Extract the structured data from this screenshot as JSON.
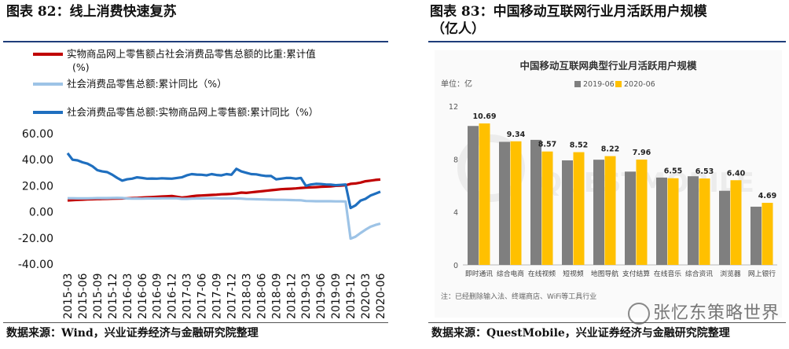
{
  "left": {
    "title": "图表 82：线上消费快速复苏",
    "source": "数据来源：Wind，兴业证券经济与金融研究院整理"
  },
  "right": {
    "title_line1": "图表 83：中国移动互联网行业月活跃用户规模",
    "title_line2": "（亿人）",
    "source": "数据来源：QuestMobile，兴业证券经济与金融研究院整理",
    "watermark": "张忆东策略世界",
    "watermark_icon": "wechat-icon"
  },
  "chart_data": [
    {
      "type": "line",
      "title": "",
      "xlabel": "",
      "ylabel": "",
      "ylim": [
        -40,
        60
      ],
      "yticks": [
        "60.00",
        "40.00",
        "20.00",
        "0.00",
        "-20.00",
        "-40.00"
      ],
      "ytick_values": [
        60,
        40,
        20,
        0,
        -20,
        -40
      ],
      "x_tick_labels": [
        "2015-03",
        "2015-06",
        "2015-09",
        "2015-12",
        "2016-03",
        "2016-06",
        "2016-09",
        "2016-12",
        "2017-03",
        "2017-06",
        "2017-09",
        "2017-12",
        "2018-03",
        "2018-06",
        "2018-09",
        "2018-12",
        "2019-03",
        "2019-06",
        "2019-09",
        "2019-12",
        "2020-03",
        "2020-06"
      ],
      "x_start_month": "2015-03",
      "n_months": 64,
      "legend_position": "top-left",
      "series": [
        {
          "name_line1": "实物商品网上零售额占社会消费品零售总额的比重:累计值",
          "name_line2": "(%)",
          "color": "#c00000",
          "values": [
            8.8,
            9.0,
            9.2,
            9.4,
            9.6,
            9.7,
            9.8,
            9.9,
            10.0,
            10.1,
            10.2,
            10.3,
            10.4,
            10.6,
            10.8,
            11.0,
            11.2,
            11.4,
            11.6,
            11.8,
            12.0,
            12.2,
            11.6,
            11.0,
            11.4,
            12.0,
            12.4,
            12.6,
            12.8,
            13.0,
            13.2,
            13.5,
            13.6,
            13.8,
            14.2,
            14.8,
            14.6,
            15.0,
            15.4,
            15.8,
            16.2,
            16.6,
            17.0,
            17.4,
            17.6,
            17.8,
            18.0,
            18.4,
            18.6,
            18.8,
            19.0,
            19.2,
            19.4,
            19.6,
            20.0,
            20.2,
            20.4,
            21.5,
            21.8,
            22.5,
            23.5,
            24.0,
            24.5,
            24.8
          ]
        },
        {
          "name_line1": "社会消费品零售总额:累计同比（%）",
          "name_line2": "",
          "color": "#9dc3e6",
          "values": [
            10.5,
            10.5,
            10.4,
            10.4,
            10.4,
            10.5,
            10.6,
            10.6,
            10.6,
            10.7,
            10.8,
            10.7,
            10.3,
            10.2,
            10.3,
            10.2,
            10.3,
            10.3,
            10.3,
            10.4,
            10.4,
            10.4,
            10.4,
            10.0,
            10.0,
            10.2,
            10.3,
            10.3,
            10.4,
            10.4,
            10.4,
            10.3,
            10.3,
            10.4,
            10.3,
            10.2,
            9.9,
            9.8,
            9.7,
            9.6,
            9.5,
            9.4,
            9.3,
            9.3,
            9.2,
            9.1,
            9.0,
            8.9,
            8.4,
            8.3,
            8.2,
            8.2,
            8.2,
            8.2,
            8.1,
            8.1,
            8.0,
            -20.5,
            -19.0,
            -16.2,
            -13.7,
            -11.4,
            -10.0,
            -9.0
          ]
        },
        {
          "name_line1": "社会消费品零售总额:实物商品网上零售额:累计同比（%）",
          "name_line2": "",
          "color": "#1f6fbf",
          "values": [
            45.0,
            40.0,
            39.5,
            38.0,
            37.0,
            35.0,
            32.0,
            31.0,
            30.5,
            28.5,
            26.0,
            24.0,
            25.0,
            25.5,
            26.5,
            26.0,
            25.5,
            25.6,
            25.5,
            25.8,
            25.6,
            25.5,
            26.0,
            26.5,
            28.0,
            29.0,
            28.6,
            28.5,
            28.0,
            29.0,
            28.3,
            28.0,
            29.0,
            28.5,
            33.0,
            31.0,
            30.0,
            29.0,
            28.8,
            28.0,
            27.5,
            27.5,
            25.0,
            25.5,
            26.0,
            26.0,
            25.5,
            26.0,
            20.0,
            21.0,
            21.5,
            21.4,
            21.0,
            20.9,
            20.5,
            20.7,
            21.0,
            3.0,
            5.0,
            8.6,
            10.0,
            12.5,
            14.0,
            15.5
          ]
        }
      ]
    },
    {
      "type": "bar",
      "title": "中国移动互联网典型行业月活跃用户规模",
      "unit_label": "单位：亿",
      "ylim": [
        0,
        12
      ],
      "yticks": [
        "0",
        "4",
        "8",
        "12"
      ],
      "ytick_values": [
        0,
        4,
        8,
        12
      ],
      "categories": [
        "即时通讯",
        "综合电商",
        "在线视频",
        "短视频",
        "地图导航",
        "支付结算",
        "在线音乐",
        "综合资讯",
        "浏览器",
        "网上银行"
      ],
      "series": [
        {
          "name": "2019-06",
          "color": "#7f7f7f",
          "values": [
            10.5,
            9.3,
            9.45,
            7.9,
            7.95,
            7.05,
            6.6,
            6.7,
            5.6,
            4.4
          ]
        },
        {
          "name": "2020-06",
          "color": "#ffc000",
          "values": [
            10.69,
            9.34,
            8.57,
            8.52,
            8.22,
            7.96,
            6.55,
            6.53,
            6.4,
            4.69
          ]
        }
      ],
      "data_labels": [
        "10.69",
        "9.34",
        "8.57",
        "8.52",
        "8.22",
        "7.96",
        "6.55",
        "6.53",
        "6.40",
        "4.69"
      ],
      "note": "注：已经删除输入法、终端商店、WiFi等工具行业",
      "bg_watermark": "QUESTMOBILE",
      "legend_position": "top-center"
    }
  ]
}
